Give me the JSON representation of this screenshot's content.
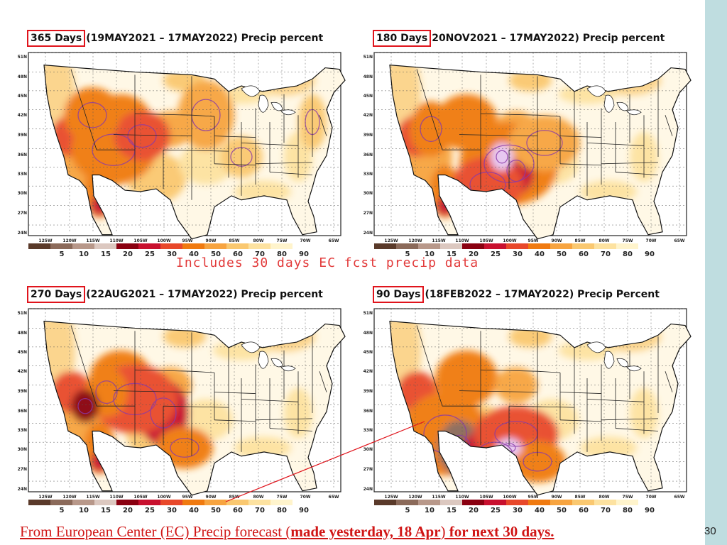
{
  "slide_number": "30",
  "note": "Includes 30 days EC fcst precip data",
  "footer": {
    "part1": "From European Center (EC) Precip forecast (",
    "part2": "made yesterday, 18 Apr",
    "part3": ")",
    "part4": " for next 30 days."
  },
  "panels": [
    {
      "days": "365 Days",
      "rest": "(19MAY2021 – 17MAY2022) Precip percent"
    },
    {
      "days": "180 Days",
      "rest": "20NOV2021 – 17MAY2022) Precip percent"
    },
    {
      "days": "270 Days",
      "rest": "(22AUG2021 – 17MAY2022) Precip percent"
    },
    {
      "days": "90 Days",
      "rest": "(18FEB2022 – 17MAY2022) Precip Percent"
    }
  ],
  "lat_labels": [
    "51N",
    "48N",
    "45N",
    "42N",
    "39N",
    "36N",
    "33N",
    "30N",
    "27N",
    "24N"
  ],
  "lon_labels": [
    "125W",
    "120W",
    "115W",
    "110W",
    "105W",
    "100W",
    "95W",
    "90W",
    "85W",
    "80W",
    "75W",
    "70W",
    "65W"
  ],
  "legend": {
    "labels": [
      "5",
      "10",
      "15",
      "20",
      "25",
      "30",
      "40",
      "50",
      "60",
      "70",
      "80",
      "90"
    ],
    "colors": [
      "#5a3a2a",
      "#8b6a5a",
      "#b8988a",
      "#dcc8c0",
      "#8a0010",
      "#c8102e",
      "#e8482a",
      "#f07a10",
      "#f7a440",
      "#fac870",
      "#fde2a0",
      "#fff4cc"
    ]
  }
}
